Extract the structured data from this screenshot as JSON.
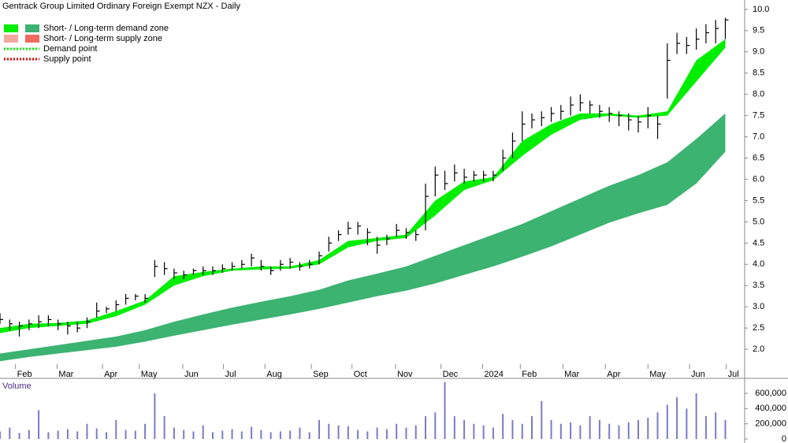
{
  "chart_data": [
    {
      "type": "stock",
      "title": "Gentrack Group Limited Ordinary Foreign Exempt NZX - Daily",
      "legend": [
        {
          "label": "Short- / Long-term demand zone",
          "colors": [
            "#00ee00",
            "#3cb371"
          ],
          "style": "box"
        },
        {
          "label": "Short- / Long-term supply zone",
          "colors": [
            "#f4a7a0",
            "#f06a60"
          ],
          "style": "box"
        },
        {
          "label": "Demand point",
          "colors": [
            "#00ee00"
          ],
          "style": "dots"
        },
        {
          "label": "Supply point",
          "colors": [
            "#e00000"
          ],
          "style": "dots"
        }
      ],
      "xlim": [
        0,
        77
      ],
      "ylim": [
        1.65,
        10.22
      ],
      "xticks": [
        {
          "value": 1.6,
          "label": "Feb"
        },
        {
          "value": 5.9,
          "label": "Mar"
        },
        {
          "value": 10.6,
          "label": "Apr"
        },
        {
          "value": 14.4,
          "label": "May"
        },
        {
          "value": 18.9,
          "label": "Jun"
        },
        {
          "value": 23.1,
          "label": "Jul"
        },
        {
          "value": 27.4,
          "label": "Aug"
        },
        {
          "value": 32.2,
          "label": "Sep"
        },
        {
          "value": 36.4,
          "label": "Oct"
        },
        {
          "value": 40.9,
          "label": "Nov"
        },
        {
          "value": 45.6,
          "label": "Dec"
        },
        {
          "value": 49.9,
          "label": "2024"
        },
        {
          "value": 53.8,
          "label": "Feb"
        },
        {
          "value": 58.2,
          "label": "Mar"
        },
        {
          "value": 62.6,
          "label": "Apr"
        },
        {
          "value": 67,
          "label": "May"
        },
        {
          "value": 71.3,
          "label": "Jun"
        },
        {
          "value": 75.1,
          "label": "Jul"
        }
      ],
      "yticks": [
        {
          "value": 2,
          "label": "2.0"
        },
        2.5,
        {
          "value": 3,
          "label": "3.0"
        },
        3.5,
        {
          "value": 4,
          "label": "4.0"
        },
        4.5,
        {
          "value": 5,
          "label": "5.0"
        },
        5.5,
        {
          "value": 6,
          "label": "6.0"
        },
        6.5,
        {
          "value": 7,
          "label": "7.0"
        },
        7.5,
        {
          "value": 8,
          "label": "8.0"
        },
        8.5,
        {
          "value": 9,
          "label": "9.0"
        },
        9.5,
        {
          "value": 10,
          "label": "10.0"
        }
      ],
      "zones": [
        {
          "color": "#3cb371",
          "x": [
            0,
            3,
            6,
            9,
            12,
            15,
            18,
            21,
            24,
            27,
            30,
            33,
            36,
            39,
            42,
            45,
            48,
            51,
            54,
            57,
            60,
            63,
            66,
            69,
            72,
            75
          ],
          "upper": [
            1.9,
            2.0,
            2.1,
            2.2,
            2.3,
            2.45,
            2.65,
            2.82,
            2.98,
            3.12,
            3.25,
            3.4,
            3.62,
            3.78,
            3.95,
            4.2,
            4.45,
            4.7,
            4.95,
            5.25,
            5.55,
            5.85,
            6.1,
            6.4,
            6.95,
            7.55
          ],
          "lower": [
            1.72,
            1.82,
            1.9,
            1.98,
            2.06,
            2.18,
            2.32,
            2.45,
            2.58,
            2.7,
            2.82,
            2.95,
            3.1,
            3.25,
            3.38,
            3.55,
            3.75,
            3.95,
            4.18,
            4.42,
            4.7,
            4.98,
            5.2,
            5.4,
            5.9,
            6.65
          ]
        },
        {
          "color": "#00ee00",
          "x": [
            0,
            3,
            6,
            9,
            12,
            15,
            18,
            21,
            24,
            27,
            30,
            33,
            36,
            39,
            42,
            45,
            48,
            51,
            54,
            57,
            60,
            63,
            66,
            69,
            72,
            75
          ],
          "upper": [
            2.5,
            2.6,
            2.62,
            2.68,
            2.9,
            3.15,
            3.72,
            3.82,
            3.9,
            3.95,
            3.95,
            4.1,
            4.55,
            4.62,
            4.7,
            5.5,
            5.95,
            6.05,
            6.9,
            7.3,
            7.55,
            7.55,
            7.5,
            7.6,
            8.8,
            9.3
          ],
          "lower": [
            2.38,
            2.5,
            2.55,
            2.6,
            2.78,
            3.05,
            3.5,
            3.72,
            3.85,
            3.88,
            3.9,
            4.0,
            4.4,
            4.55,
            4.62,
            5.15,
            5.75,
            5.98,
            6.55,
            7.05,
            7.4,
            7.5,
            7.45,
            7.5,
            8.3,
            9.1
          ]
        }
      ],
      "series": [
        {
          "color": "#000000",
          "x": [
            0,
            1,
            2,
            3,
            4,
            5,
            6,
            7,
            8,
            9,
            10,
            11,
            12,
            13,
            14,
            15,
            16,
            17,
            18,
            19,
            20,
            21,
            22,
            23,
            24,
            25,
            26,
            27,
            28,
            29,
            30,
            31,
            32,
            33,
            34,
            35,
            36,
            37,
            38,
            39,
            40,
            41,
            42,
            43,
            44,
            45,
            46,
            47,
            48,
            49,
            50,
            51,
            52,
            53,
            54,
            55,
            56,
            57,
            58,
            59,
            60,
            61,
            62,
            63,
            64,
            65,
            66,
            67,
            68,
            69,
            70,
            71,
            72,
            73,
            74,
            75
          ],
          "high": [
            2.85,
            2.7,
            2.65,
            2.7,
            2.8,
            2.8,
            2.7,
            2.65,
            2.65,
            2.75,
            3.1,
            3.0,
            3.15,
            3.3,
            3.3,
            3.3,
            4.1,
            4.05,
            3.9,
            3.85,
            3.9,
            3.95,
            3.95,
            4.0,
            4.05,
            4.1,
            4.25,
            4.1,
            3.95,
            4.1,
            4.15,
            4.05,
            4.1,
            4.3,
            4.65,
            4.8,
            5.0,
            5.0,
            4.85,
            4.65,
            4.7,
            4.95,
            4.85,
            4.8,
            5.9,
            6.3,
            6.2,
            6.35,
            6.25,
            6.2,
            6.2,
            6.2,
            6.7,
            7.1,
            7.6,
            7.55,
            7.6,
            7.7,
            7.75,
            7.95,
            8.0,
            7.85,
            7.75,
            7.7,
            7.6,
            7.55,
            7.5,
            7.7,
            7.5,
            9.2,
            9.45,
            9.35,
            9.55,
            9.65,
            9.75,
            9.8
          ],
          "low": [
            2.6,
            2.45,
            2.3,
            2.45,
            2.5,
            2.55,
            2.45,
            2.35,
            2.4,
            2.5,
            2.75,
            2.85,
            2.9,
            3.05,
            3.15,
            3.1,
            3.7,
            3.75,
            3.65,
            3.65,
            3.75,
            3.75,
            3.75,
            3.8,
            3.85,
            3.9,
            3.95,
            3.85,
            3.75,
            3.85,
            3.9,
            3.85,
            3.9,
            4.0,
            4.3,
            4.55,
            4.7,
            4.7,
            4.45,
            4.25,
            4.45,
            4.65,
            4.6,
            4.55,
            4.8,
            5.6,
            5.75,
            5.95,
            5.9,
            5.95,
            5.95,
            5.95,
            6.2,
            6.5,
            6.9,
            7.2,
            7.25,
            7.35,
            7.4,
            7.5,
            7.6,
            7.55,
            7.45,
            7.35,
            7.25,
            7.15,
            7.1,
            7.2,
            6.95,
            7.9,
            8.95,
            8.95,
            9.05,
            9.2,
            9.2,
            9.3
          ],
          "close": [
            2.7,
            2.6,
            2.55,
            2.6,
            2.65,
            2.7,
            2.6,
            2.55,
            2.5,
            2.65,
            2.9,
            2.95,
            3.05,
            3.2,
            3.25,
            3.2,
            3.95,
            3.9,
            3.8,
            3.75,
            3.85,
            3.85,
            3.85,
            3.9,
            3.95,
            4.0,
            4.15,
            3.95,
            3.85,
            4.0,
            4.05,
            3.95,
            4.0,
            4.2,
            4.5,
            4.7,
            4.85,
            4.9,
            4.75,
            4.45,
            4.6,
            4.8,
            4.75,
            4.7,
            5.6,
            6.1,
            5.9,
            6.15,
            6.05,
            6.1,
            6.1,
            6.1,
            6.5,
            6.9,
            7.3,
            7.4,
            7.45,
            7.55,
            7.6,
            7.75,
            7.8,
            7.75,
            7.6,
            7.55,
            7.5,
            7.4,
            7.35,
            7.5,
            7.3,
            8.8,
            9.2,
            9.15,
            9.3,
            9.45,
            9.55,
            9.75
          ]
        }
      ]
    },
    {
      "type": "volume",
      "title": "Volume",
      "xlim": [
        0,
        77
      ],
      "ylim": [
        0,
        776000
      ],
      "yticks": [
        0,
        {
          "value": 200000,
          "label": "200,000"
        },
        {
          "value": 400000,
          "label": "400,000"
        },
        {
          "value": 600000,
          "label": "600,000"
        }
      ],
      "series": [
        {
          "color": "#7b7bc8",
          "x": [
            0,
            1,
            2,
            3,
            4,
            5,
            6,
            7,
            8,
            9,
            10,
            11,
            12,
            13,
            14,
            15,
            16,
            17,
            18,
            19,
            20,
            21,
            22,
            23,
            24,
            25,
            26,
            27,
            28,
            29,
            30,
            31,
            32,
            33,
            34,
            35,
            36,
            37,
            38,
            39,
            40,
            41,
            42,
            43,
            44,
            45,
            46,
            47,
            48,
            49,
            50,
            51,
            52,
            53,
            54,
            55,
            56,
            57,
            58,
            59,
            60,
            61,
            62,
            63,
            64,
            65,
            66,
            67,
            68,
            69,
            70,
            71,
            72,
            73,
            74,
            75
          ],
          "values": [
            100000,
            150000,
            80000,
            120000,
            380000,
            90000,
            110000,
            130000,
            100000,
            200000,
            140000,
            90000,
            250000,
            120000,
            110000,
            200000,
            600000,
            300000,
            150000,
            120000,
            100000,
            180000,
            90000,
            110000,
            130000,
            100000,
            160000,
            120000,
            90000,
            100000,
            110000,
            150000,
            90000,
            250000,
            200000,
            180000,
            170000,
            120000,
            100000,
            150000,
            130000,
            200000,
            150000,
            180000,
            300000,
            350000,
            750000,
            300000,
            250000,
            200000,
            180000,
            150000,
            330000,
            250000,
            200000,
            300000,
            500000,
            250000,
            200000,
            220000,
            180000,
            300000,
            250000,
            200000,
            180000,
            220000,
            250000,
            280000,
            350000,
            450000,
            550000,
            400000,
            600000,
            300000,
            350000,
            250000
          ]
        }
      ]
    }
  ]
}
